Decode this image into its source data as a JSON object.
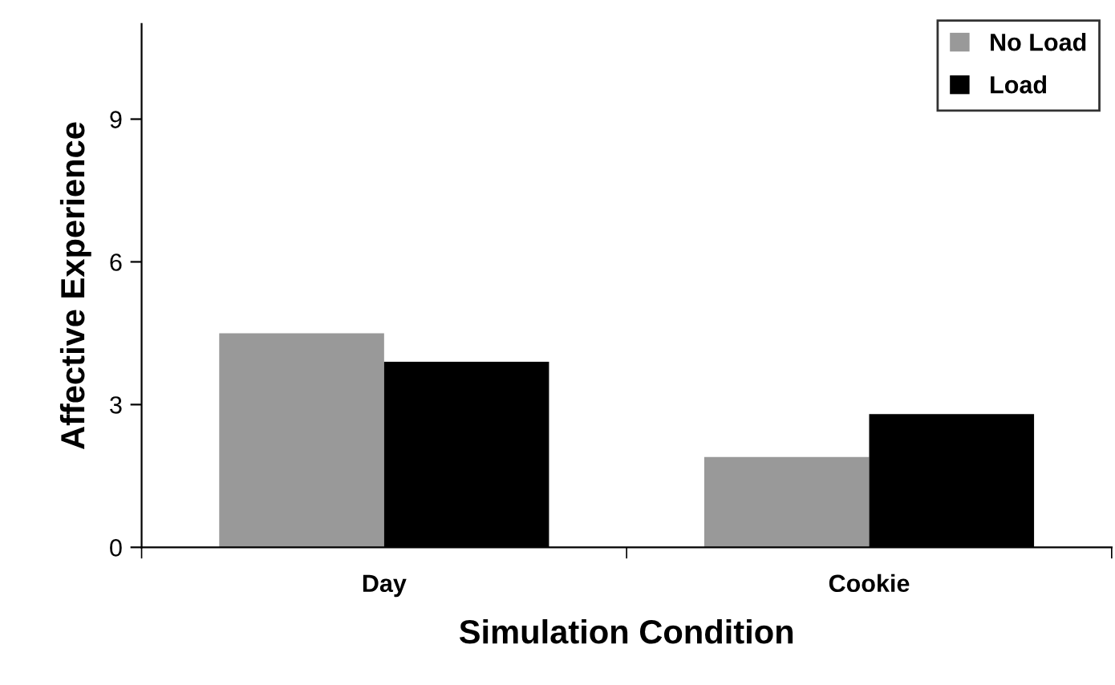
{
  "chart_data": {
    "type": "bar",
    "xlabel": "Simulation Condition",
    "ylabel": "Affective Experience",
    "categories": [
      "Day",
      "Cookie"
    ],
    "series": [
      {
        "name": "No Load",
        "color": "#999999",
        "values": [
          4.5,
          1.9
        ]
      },
      {
        "name": "Load",
        "color": "#000000",
        "values": [
          3.9,
          2.8
        ]
      }
    ],
    "ylim": [
      0,
      11
    ],
    "yticks": [
      0,
      3,
      6,
      9
    ],
    "grid": false,
    "legend": "top right"
  }
}
